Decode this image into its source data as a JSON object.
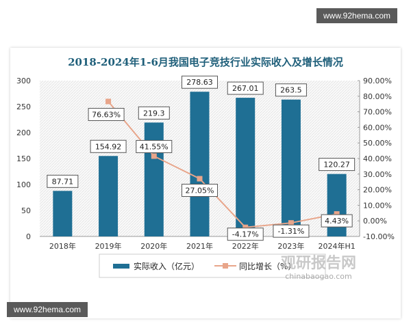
{
  "watermarks": {
    "top": "www.92hema.com",
    "bottom": "www.92hema.com",
    "logo": "观研报告网",
    "logo_url": "chinabaogao.com"
  },
  "colors": {
    "bar": "#1f6f94",
    "line": "#e8a58a",
    "title": "#1f5f7a"
  },
  "chart_data": {
    "type": "bar+line",
    "title": "2018-2024年1-6月我国电子竞技行业实际收入及增长情况",
    "categories": [
      "2018年",
      "2019年",
      "2020年",
      "2021年",
      "2022年",
      "2023年",
      "2024年H1"
    ],
    "series": [
      {
        "name": "实际收入（亿元）",
        "type": "bar",
        "axis": "left",
        "values": [
          87.71,
          154.92,
          219.3,
          278.63,
          267.01,
          263.5,
          120.27
        ],
        "labels": [
          "87.71",
          "154.92",
          "219.3",
          "278.63",
          "267.01",
          "263.5",
          "120.27"
        ]
      },
      {
        "name": "同比增长（%）",
        "type": "line",
        "axis": "right",
        "values": [
          null,
          76.63,
          41.55,
          27.05,
          -4.17,
          -1.31,
          4.43
        ],
        "labels": [
          "",
          "76.63%",
          "41.55%",
          "27.05%",
          "-4.17%",
          "-1.31%",
          "4.43%"
        ]
      }
    ],
    "y_left": {
      "range": [
        0,
        300
      ],
      "ticks": [
        "0",
        "50",
        "100",
        "150",
        "200",
        "250",
        "300"
      ]
    },
    "y_right": {
      "range": [
        -10,
        90
      ],
      "ticks": [
        "-10.00%",
        "0.00%",
        "10.00%",
        "20.00%",
        "30.00%",
        "40.00%",
        "50.00%",
        "60.00%",
        "70.00%",
        "80.00%",
        "90.00%"
      ]
    },
    "legend": "bottom",
    "grid": false
  }
}
